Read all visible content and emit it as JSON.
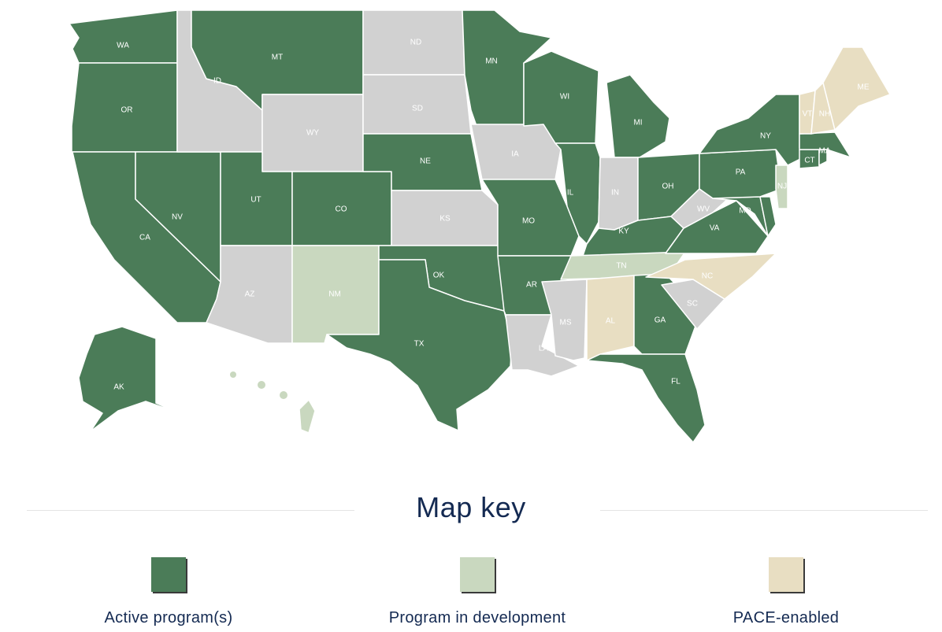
{
  "colors": {
    "active": "#4b7c58",
    "development": "#c9d8bf",
    "pace": "#e8dec2",
    "none": "#d1d1d1"
  },
  "map": {
    "states": [
      {
        "code": "WA",
        "label": "WA",
        "status": "active"
      },
      {
        "code": "OR",
        "label": "OR",
        "status": "active"
      },
      {
        "code": "CA",
        "label": "CA",
        "status": "active"
      },
      {
        "code": "NV",
        "label": "NV",
        "status": "active"
      },
      {
        "code": "ID",
        "label": "ID",
        "status": "none"
      },
      {
        "code": "MT",
        "label": "MT",
        "status": "active"
      },
      {
        "code": "WY",
        "label": "WY",
        "status": "none"
      },
      {
        "code": "UT",
        "label": "UT",
        "status": "active"
      },
      {
        "code": "CO",
        "label": "CO",
        "status": "active"
      },
      {
        "code": "AZ",
        "label": "AZ",
        "status": "none"
      },
      {
        "code": "NM",
        "label": "NM",
        "status": "development"
      },
      {
        "code": "ND",
        "label": "ND",
        "status": "none"
      },
      {
        "code": "SD",
        "label": "SD",
        "status": "none"
      },
      {
        "code": "NE",
        "label": "NE",
        "status": "active"
      },
      {
        "code": "KS",
        "label": "KS",
        "status": "none"
      },
      {
        "code": "OK",
        "label": "OK",
        "status": "active"
      },
      {
        "code": "TX",
        "label": "TX",
        "status": "active"
      },
      {
        "code": "MN",
        "label": "MN",
        "status": "active"
      },
      {
        "code": "IA",
        "label": "IA",
        "status": "none"
      },
      {
        "code": "MO",
        "label": "MO",
        "status": "active"
      },
      {
        "code": "AR",
        "label": "AR",
        "status": "active"
      },
      {
        "code": "LA",
        "label": "LA",
        "status": "none"
      },
      {
        "code": "WI",
        "label": "WI",
        "status": "active"
      },
      {
        "code": "IL",
        "label": "IL",
        "status": "active"
      },
      {
        "code": "MI",
        "label": "MI",
        "status": "active"
      },
      {
        "code": "IN",
        "label": "IN",
        "status": "none"
      },
      {
        "code": "OH",
        "label": "OH",
        "status": "active"
      },
      {
        "code": "KY",
        "label": "KY",
        "status": "active"
      },
      {
        "code": "TN",
        "label": "TN",
        "status": "development"
      },
      {
        "code": "MS",
        "label": "MS",
        "status": "none"
      },
      {
        "code": "AL",
        "label": "AL",
        "status": "pace"
      },
      {
        "code": "GA",
        "label": "GA",
        "status": "active"
      },
      {
        "code": "FL",
        "label": "FL",
        "status": "active"
      },
      {
        "code": "SC",
        "label": "SC",
        "status": "none"
      },
      {
        "code": "NC",
        "label": "NC",
        "status": "pace"
      },
      {
        "code": "VA",
        "label": "VA",
        "status": "active"
      },
      {
        "code": "WV",
        "label": "WV",
        "status": "none"
      },
      {
        "code": "MD",
        "label": "MD",
        "status": "active"
      },
      {
        "code": "DE",
        "label": "",
        "status": "active"
      },
      {
        "code": "PA",
        "label": "PA",
        "status": "active"
      },
      {
        "code": "NJ",
        "label": "NJ",
        "status": "development"
      },
      {
        "code": "NY",
        "label": "NY",
        "status": "active"
      },
      {
        "code": "CT",
        "label": "CT",
        "status": "active"
      },
      {
        "code": "RI",
        "label": "",
        "status": "active"
      },
      {
        "code": "MA",
        "label": "MA",
        "status": "active"
      },
      {
        "code": "VT",
        "label": "VT",
        "status": "pace"
      },
      {
        "code": "NH",
        "label": "NH",
        "status": "pace"
      },
      {
        "code": "ME",
        "label": "ME",
        "status": "pace"
      },
      {
        "code": "AK",
        "label": "AK",
        "status": "active"
      },
      {
        "code": "HI",
        "label": "",
        "status": "development"
      }
    ]
  },
  "key": {
    "title": "Map key",
    "items": [
      {
        "label": "Active program(s)",
        "status": "active"
      },
      {
        "label": "Program in development",
        "status": "development"
      },
      {
        "label": "PACE-enabled",
        "status": "pace"
      }
    ]
  }
}
